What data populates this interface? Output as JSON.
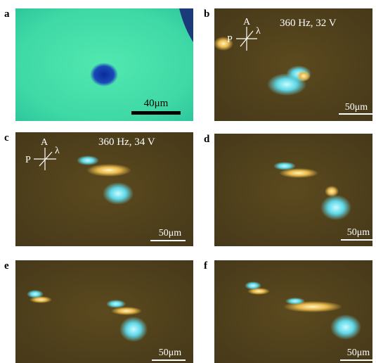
{
  "panels": [
    {
      "label": "a",
      "scale_bar": "40μm"
    },
    {
      "label": "b",
      "condition": "360 Hz, 32 V",
      "axes": {
        "analyzer": "A",
        "polarizer": "P",
        "wave_plate": "λ"
      },
      "scale_bar": "50μm"
    },
    {
      "label": "c",
      "condition": "360 Hz, 34 V",
      "axes": {
        "analyzer": "A",
        "polarizer": "P",
        "wave_plate": "λ"
      },
      "scale_bar": "50μm"
    },
    {
      "label": "d",
      "scale_bar": "50μm"
    },
    {
      "label": "e",
      "scale_bar": "50μm"
    },
    {
      "label": "f",
      "scale_bar": "50μm"
    }
  ]
}
